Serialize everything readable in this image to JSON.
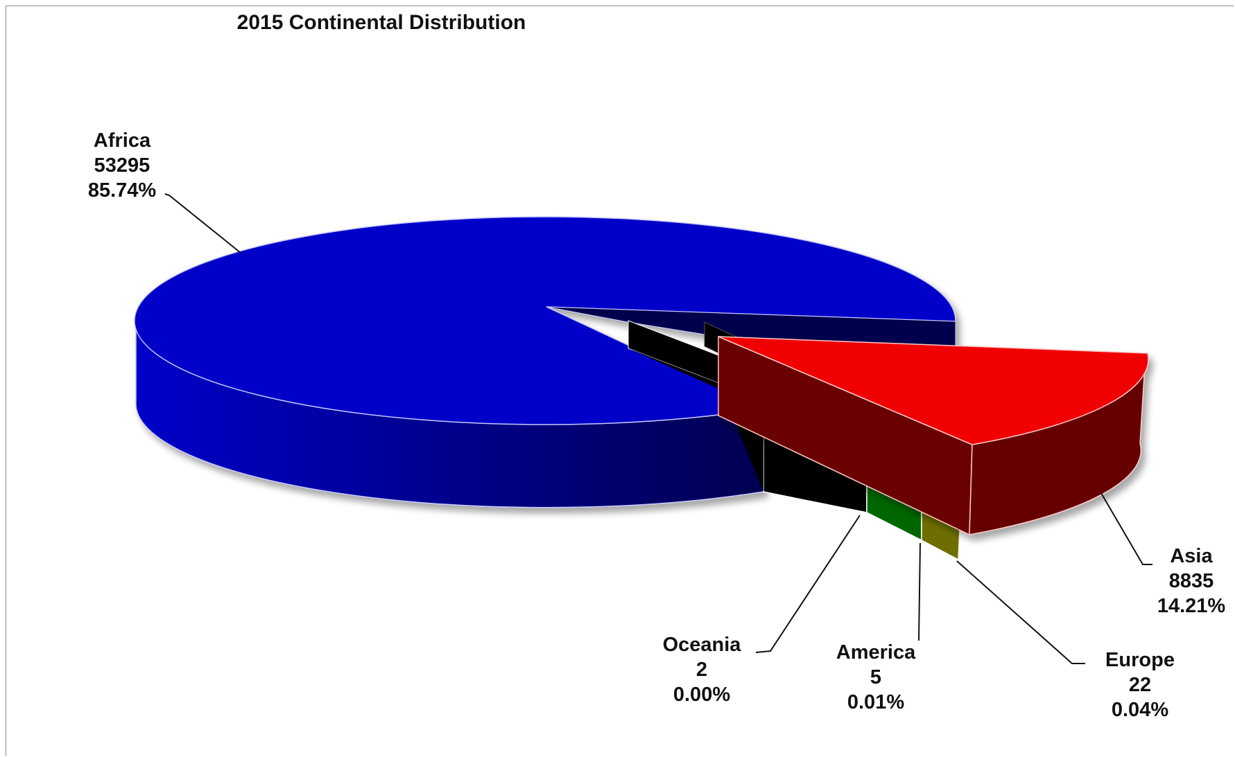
{
  "chart_data": {
    "type": "pie",
    "title": "2015  Continental Distribution",
    "slices": [
      {
        "name": "Africa",
        "value": 53295,
        "percent_label": "85.74%",
        "color": "#0000c8"
      },
      {
        "name": "Asia",
        "value": 8835,
        "percent_label": "14.21%",
        "color": "#f00000"
      },
      {
        "name": "Europe",
        "value": 22,
        "percent_label": "0.04%",
        "color": "#6e6e00"
      },
      {
        "name": "America",
        "value": 5,
        "percent_label": "0.01%",
        "color": "#006600"
      },
      {
        "name": "Oceania",
        "value": 2,
        "percent_label": "0.00%",
        "color": "#000000"
      }
    ],
    "style": "3d-exploded",
    "legend": "none"
  }
}
